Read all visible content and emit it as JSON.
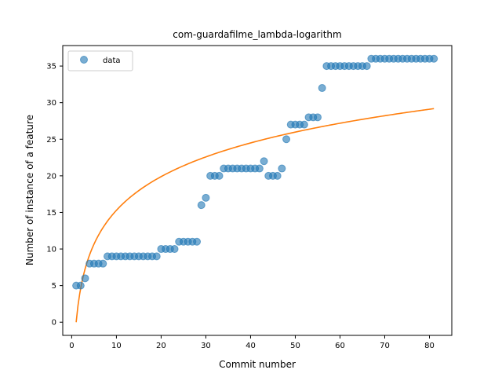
{
  "chart_data": {
    "type": "scatter",
    "title": "com-guardafilme_lambda-logarithm",
    "xlabel": "Commit number",
    "ylabel": "Number of instance of a feature",
    "xlim": [
      -2,
      85
    ],
    "ylim": [
      -1.8,
      37.8
    ],
    "xticks": [
      0,
      10,
      20,
      30,
      40,
      50,
      60,
      70,
      80
    ],
    "yticks": [
      0,
      5,
      10,
      15,
      20,
      25,
      30,
      35
    ],
    "grid": false,
    "legend": {
      "placement": "top-left",
      "entries": [
        "data"
      ]
    },
    "colors": {
      "data": "#1f77b4",
      "fit": "#ff7f0e"
    },
    "series": [
      {
        "name": "data",
        "kind": "scatter",
        "x": [
          1,
          2,
          3,
          4,
          5,
          6,
          7,
          8,
          9,
          10,
          11,
          12,
          13,
          14,
          15,
          16,
          17,
          18,
          19,
          20,
          21,
          22,
          23,
          24,
          25,
          26,
          27,
          28,
          29,
          30,
          31,
          32,
          33,
          34,
          35,
          36,
          37,
          38,
          39,
          40,
          41,
          42,
          43,
          44,
          45,
          46,
          47,
          48,
          49,
          50,
          51,
          52,
          53,
          54,
          55,
          56,
          57,
          58,
          59,
          60,
          61,
          62,
          63,
          64,
          65,
          66,
          67,
          68,
          69,
          70,
          71,
          72,
          73,
          74,
          75,
          76,
          77,
          78,
          79,
          80,
          81
        ],
        "y": [
          5,
          5,
          6,
          8,
          8,
          8,
          8,
          9,
          9,
          9,
          9,
          9,
          9,
          9,
          9,
          9,
          9,
          9,
          9,
          10,
          10,
          10,
          10,
          11,
          11,
          11,
          11,
          11,
          16,
          17,
          20,
          20,
          20,
          21,
          21,
          21,
          21,
          21,
          21,
          21,
          21,
          21,
          22,
          20,
          20,
          20,
          21,
          25,
          27,
          27,
          27,
          27,
          28,
          28,
          28,
          32,
          35,
          35,
          35,
          35,
          35,
          35,
          35,
          35,
          35,
          35,
          36,
          36,
          36,
          36,
          36,
          36,
          36,
          36,
          36,
          36,
          36,
          36,
          36,
          36,
          36
        ]
      },
      {
        "name": "",
        "kind": "line",
        "model": "a*ln(x)",
        "a": 6.64,
        "x_range": [
          1,
          81
        ]
      }
    ]
  }
}
